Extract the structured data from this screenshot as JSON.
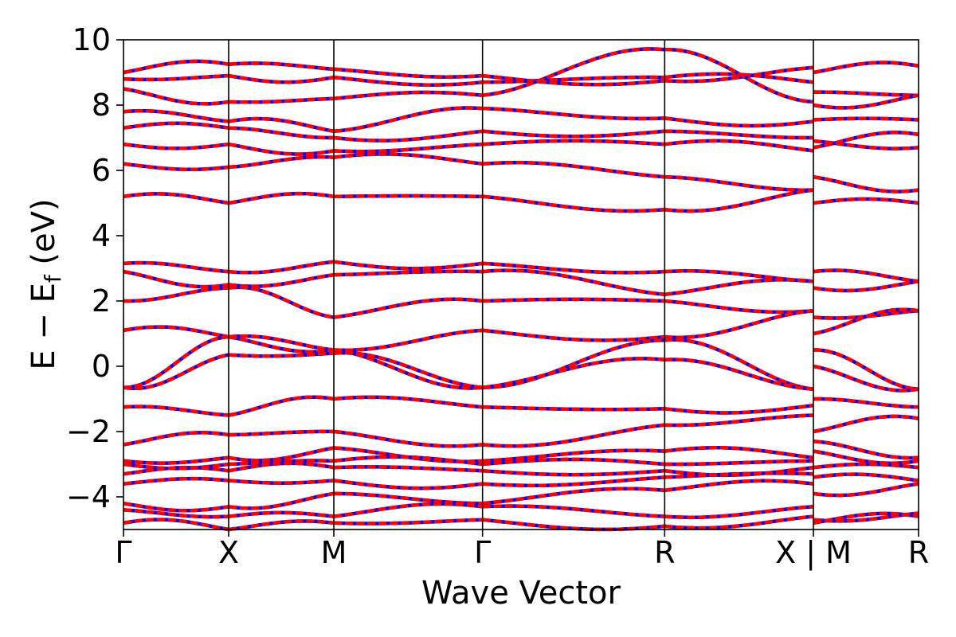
{
  "chart_data": {
    "type": "line",
    "xlabel": "Wave Vector",
    "ylabel_main": "E − E",
    "ylabel_sub": "f",
    "ylabel_unit": " (eV)",
    "ylim": [
      -5,
      10
    ],
    "yticks": [
      -4,
      -2,
      0,
      2,
      4,
      6,
      8,
      10
    ],
    "ytick_labels": [
      "−4",
      "−2",
      "0",
      "2",
      "4",
      "6",
      "8",
      "10"
    ],
    "kpath": [
      {
        "label": "Γ",
        "pos": 0.0
      },
      {
        "label": "X",
        "pos": 0.5
      },
      {
        "label": "M",
        "pos": 1.0
      },
      {
        "label": "Γ",
        "pos": 1.707
      },
      {
        "label": "R",
        "pos": 2.573
      },
      {
        "label": "X | M",
        "pos": 3.28
      },
      {
        "label": "R",
        "pos": 3.78
      }
    ],
    "xlim": [
      0,
      3.78
    ],
    "grid": false,
    "line_colors": {
      "spin_up": "#ff0000",
      "spin_down": "#0000ff"
    },
    "bands": [
      [
        9.0,
        9.25,
        9.1,
        8.9,
        8.75,
        9.15,
        9.0,
        9.2
      ],
      [
        8.8,
        8.9,
        8.85,
        8.7,
        8.85,
        8.7,
        8.4,
        8.3
      ],
      [
        8.5,
        8.1,
        8.2,
        8.3,
        9.7,
        8.1,
        8.0,
        8.3
      ],
      [
        7.8,
        7.5,
        7.2,
        7.9,
        7.6,
        7.5,
        7.55,
        7.55
      ],
      [
        7.3,
        7.3,
        7.0,
        7.2,
        7.2,
        7.0,
        6.7,
        7.1
      ],
      [
        6.8,
        6.8,
        6.6,
        6.8,
        6.8,
        6.6,
        6.9,
        6.7
      ],
      [
        6.2,
        6.1,
        6.4,
        6.2,
        5.8,
        5.4,
        5.8,
        5.4
      ],
      [
        5.2,
        5.0,
        5.2,
        5.2,
        4.8,
        5.4,
        5.0,
        5.0
      ],
      [
        3.15,
        2.9,
        3.2,
        3.15,
        2.9,
        2.6,
        2.9,
        2.6
      ],
      [
        2.9,
        2.5,
        2.8,
        2.9,
        2.2,
        2.6,
        2.4,
        2.6
      ],
      [
        2.0,
        2.4,
        1.5,
        2.0,
        2.0,
        1.7,
        1.5,
        1.7
      ],
      [
        1.1,
        0.9,
        0.5,
        1.1,
        0.9,
        1.7,
        1.0,
        1.7
      ],
      [
        -0.65,
        0.9,
        0.5,
        -0.65,
        0.8,
        -0.7,
        0.5,
        -0.7
      ],
      [
        -0.65,
        0.35,
        0.4,
        -0.65,
        0.2,
        -0.7,
        0.0,
        -0.7
      ],
      [
        -1.25,
        -1.5,
        -1.0,
        -1.25,
        -1.3,
        -1.2,
        -1.0,
        -1.25
      ],
      [
        -2.4,
        -2.1,
        -2.0,
        -2.4,
        -1.8,
        -1.5,
        -2.0,
        -1.6
      ],
      [
        -2.9,
        -2.8,
        -2.5,
        -2.9,
        -2.6,
        -2.8,
        -2.3,
        -2.8
      ],
      [
        -3.0,
        -3.0,
        -2.9,
        -3.0,
        -3.0,
        -2.9,
        -2.6,
        -2.9
      ],
      [
        -3.3,
        -3.2,
        -3.1,
        -3.2,
        -3.2,
        -3.1,
        -3.1,
        -3.1
      ],
      [
        -3.6,
        -3.5,
        -3.5,
        -3.6,
        -3.4,
        -3.3,
        -3.4,
        -3.5
      ],
      [
        -4.2,
        -4.3,
        -3.9,
        -4.2,
        -3.8,
        -3.6,
        -3.9,
        -3.6
      ],
      [
        -4.4,
        -4.6,
        -4.6,
        -4.3,
        -4.6,
        -4.3,
        -4.7,
        -4.5
      ],
      [
        -4.8,
        -5.0,
        -4.8,
        -4.7,
        -4.9,
        -4.6,
        -4.8,
        -4.6
      ]
    ]
  }
}
